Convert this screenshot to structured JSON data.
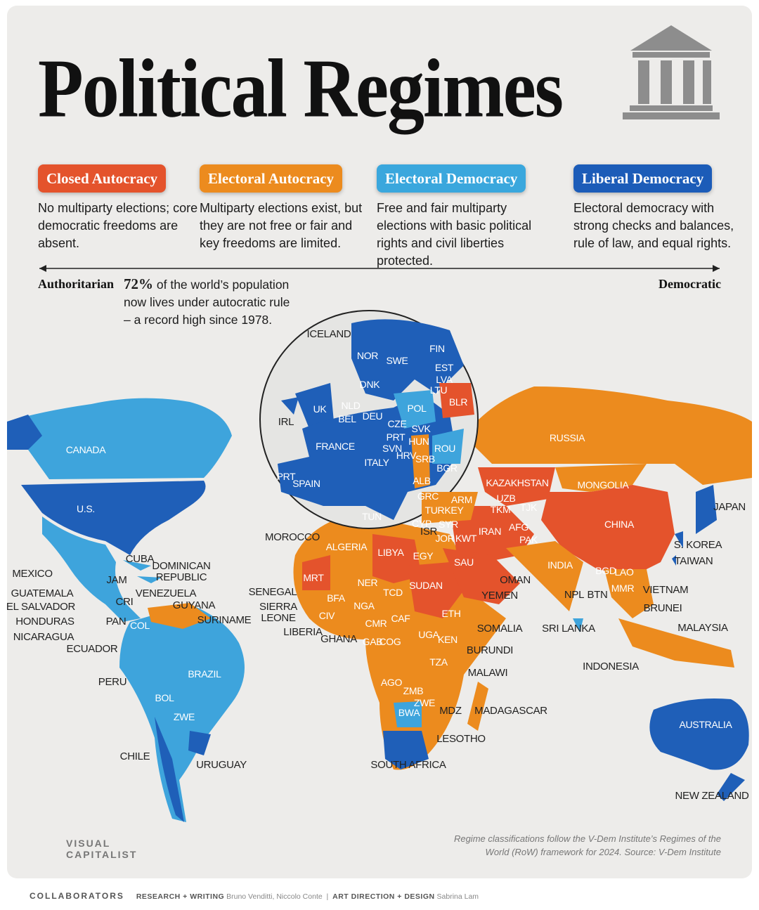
{
  "header": {
    "title": "Political Regimes"
  },
  "legend": [
    {
      "name": "Closed Autocracy",
      "color": "#e4532c",
      "description": "No multiparty elections; core democratic freedoms are absent."
    },
    {
      "name": "Electoral Autocracy",
      "color": "#ec8b1e",
      "description": "Multiparty elections exist, but they are not free or fair and key freedoms are limited."
    },
    {
      "name": "Electoral Democracy",
      "color": "#3aa7dd",
      "description": "Free and fair multiparty elections with basic political rights and civil liberties protected."
    },
    {
      "name": "Liberal Democracy",
      "color": "#1c5cb8",
      "description": "Electoral democracy with strong checks and balances, rule of law, and equal rights."
    }
  ],
  "scale": {
    "left": "Authoritarian",
    "right": "Democratic"
  },
  "note": {
    "highlight": "72%",
    "text": "of the world’s population now lives under autocratic rule – a record high since 1978."
  },
  "countries": [
    "ICELAND",
    "NOR",
    "SWE",
    "FIN",
    "EST",
    "LVA",
    "DNK",
    "LTU",
    "BLR",
    "UK",
    "NLD",
    "IRL",
    "BEL",
    "DEU",
    "POL",
    "CZE",
    "SVK",
    "PRT",
    "HUN",
    "FRANCE",
    "SVN",
    "ROU",
    "HRV",
    "SRB",
    "ITALY",
    "BGR",
    "PRT",
    "SPAIN",
    "ALB",
    "GRC",
    "ARM",
    "RUSSIA",
    "CANADA",
    "KAZAKHSTAN",
    "MONGOLIA",
    "UZB",
    "TKM",
    "TJK",
    "TURKEY",
    "U.S.",
    "JAPAN",
    "TUN",
    "CYP",
    "SYR",
    "ISR",
    "IRAN",
    "AFG",
    "CHINA",
    "MOROCCO",
    "JOR",
    "KWT",
    "PAK",
    "ALGERIA",
    "LIBYA",
    "EGY",
    "S. KOREA",
    "SAU",
    "TAIWAN",
    "CUBA",
    "DOMINICAN REPUBLIC",
    "INDIA",
    "MEXICO",
    "JAM",
    "MRT",
    "OMAN",
    "NER",
    "BGD",
    "LAO",
    "SUDAN",
    "CRI",
    "VENEZUELA",
    "TCD",
    "GUATEMALA",
    "MMR",
    "VIETNAM",
    "SENEGAL",
    "NPL",
    "BTN",
    "YEMEN",
    "EL SALVADOR",
    "GUYANA",
    "BFA",
    "NGA",
    "SIERRA LEONE",
    "PAN",
    "HONDURAS",
    "SURINAME",
    "ETH",
    "BRUNEI",
    "CIV",
    "CAF",
    "COL",
    "MALAYSIA",
    "SOMALIA",
    "SRI LANKA",
    "LIBERIA",
    "GHANA",
    "CMR",
    "NICARAGUA",
    "UGA",
    "KEN",
    "GAB",
    "COG",
    "ECUADOR",
    "BURUNDI",
    "TZA",
    "INDONESIA",
    "BRAZIL",
    "MALAWI",
    "PERU",
    "AGO",
    "ZMB",
    "BOL",
    "ZWE",
    "ZWE",
    "MDZ",
    "MADAGASCAR",
    "BWA",
    "AUSTRALIA",
    "LESOTHO",
    "CHILE",
    "URUGUAY",
    "SOUTH AFRICA",
    "NEW ZEALAND"
  ],
  "source": "Regime classifications follow the V-Dem Institute’s Regimes of the World (RoW) framework for 2024. Source: V-Dem Institute",
  "brand": "VISUAL CAPITALIST",
  "credits": {
    "label": "COLLABORATORS",
    "research_label": "RESEARCH + WRITING",
    "research": "Bruno Venditti, Niccolo Conte",
    "design_label": "ART DIRECTION + DESIGN",
    "design": "Sabrina Lam"
  }
}
